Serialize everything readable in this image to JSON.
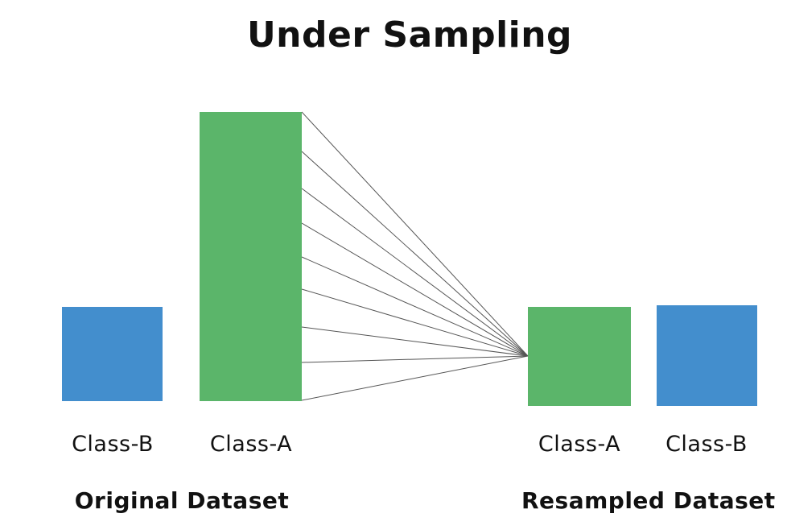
{
  "title": "Under Sampling",
  "colors": {
    "class_a": "#5bb56a",
    "class_b": "#438ecd",
    "connector": "#555555",
    "text": "#111111"
  },
  "original": {
    "group_label": "Original Dataset",
    "bars": [
      {
        "id": "class-b",
        "label": "Class-B"
      },
      {
        "id": "class-a",
        "label": "Class-A"
      }
    ]
  },
  "resampled": {
    "group_label": "Resampled Dataset",
    "bars": [
      {
        "id": "class-a",
        "label": "Class-A"
      },
      {
        "id": "class-b",
        "label": "Class-B"
      }
    ]
  }
}
